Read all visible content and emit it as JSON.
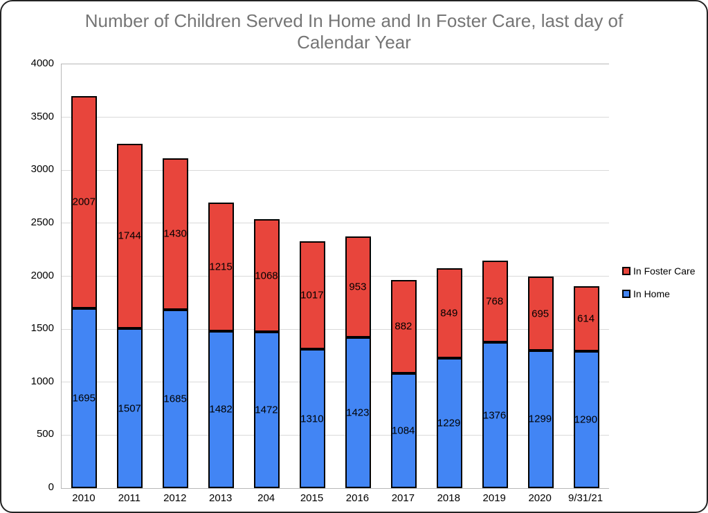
{
  "window": {
    "background": "#ffffff",
    "card_background": "#ffffff",
    "card_border_color": "#222222"
  },
  "header": {
    "title_line1": "Number of Children Served In Home and In Foster Care, last day of",
    "title_line2": "Calendar Year",
    "title_color": "#757575"
  },
  "chart_data": {
    "type": "bar",
    "stacked": true,
    "title": "Number of Children Served In Home and In Foster Care, last day of Calendar Year",
    "categories": [
      "2010",
      "2011",
      "2012",
      "2013",
      "204",
      "2015",
      "2016",
      "2017",
      "2018",
      "2019",
      "2020",
      "9/31/21"
    ],
    "series": [
      {
        "name": "In Home",
        "color": "#4285F4",
        "values": [
          1695,
          1507,
          1685,
          1482,
          1472,
          1310,
          1423,
          1084,
          1229,
          1376,
          1299,
          1290
        ]
      },
      {
        "name": "In Foster Care",
        "color": "#E8453C",
        "values": [
          2007,
          1744,
          1430,
          1215,
          1068,
          1017,
          953,
          882,
          849,
          768,
          695,
          614
        ]
      }
    ],
    "xlabel": "",
    "ylabel": "",
    "ylim": [
      0,
      4000
    ],
    "yticks": [
      0,
      500,
      1000,
      1500,
      2000,
      2500,
      3000,
      3500,
      4000
    ],
    "grid": true,
    "grid_color": "#d9d9d9",
    "axis_color": "#b7b7b7",
    "bar_border_color": "#000000",
    "data_label_color": "#000000",
    "legend_position": "right",
    "legend": [
      {
        "label": "In Foster Care",
        "color": "#E8453C"
      },
      {
        "label": "In Home",
        "color": "#4285F4"
      }
    ]
  }
}
